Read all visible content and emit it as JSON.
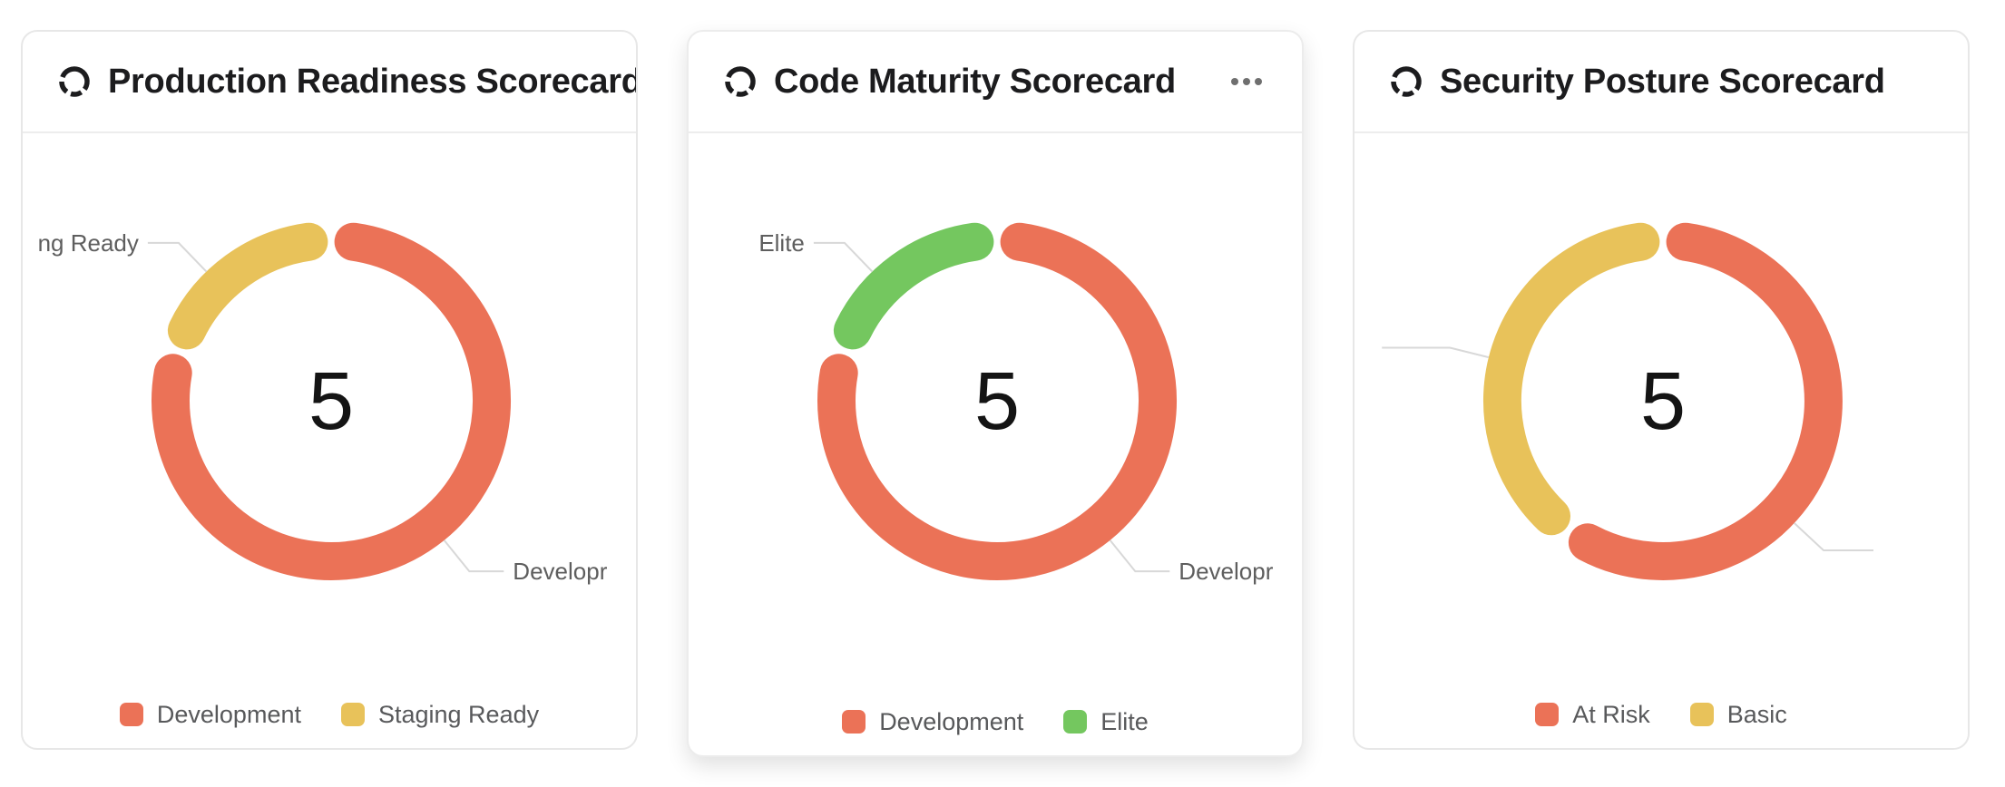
{
  "style": {
    "leader_line_color": "#d8d8d8",
    "accent_red": "#EB7257",
    "accent_yellow": "#E8C25A",
    "accent_green": "#74C75F"
  },
  "cards": [
    {
      "title": "Production Readiness Scorecard",
      "icon": "donut-chart-icon",
      "has_menu": false,
      "legend": [
        {
          "label": "Development",
          "color": "#EB7257"
        },
        {
          "label": "Staging Ready",
          "color": "#E8C25A"
        }
      ]
    },
    {
      "title": "Code Maturity Scorecard",
      "icon": "donut-chart-icon",
      "has_menu": true,
      "menu_icon": "ellipsis-icon",
      "legend": [
        {
          "label": "Development",
          "color": "#EB7257"
        },
        {
          "label": "Elite",
          "color": "#74C75F"
        }
      ]
    },
    {
      "title": "Security Posture Scorecard",
      "icon": "donut-chart-icon",
      "has_menu": false,
      "legend": [
        {
          "label": "At Risk",
          "color": "#EB7257"
        },
        {
          "label": "Basic",
          "color": "#E8C25A"
        }
      ]
    }
  ],
  "chart_data": [
    {
      "type": "pie",
      "subtype": "donut",
      "title": "Production Readiness Scorecard",
      "center_label": "5",
      "total": 5,
      "legend_position": "bottom",
      "slices": [
        {
          "label": "Development",
          "value": 4,
          "color": "#EB7257"
        },
        {
          "label": "Staging Ready",
          "value": 1,
          "color": "#E8C25A"
        }
      ],
      "callouts": [
        {
          "text": "ng Ready",
          "angle": 316,
          "hlen": 34
        },
        {
          "text": "Developr",
          "angle": 141,
          "hlen": 38
        }
      ]
    },
    {
      "type": "pie",
      "subtype": "donut",
      "title": "Code Maturity Scorecard",
      "center_label": "5",
      "total": 5,
      "legend_position": "bottom",
      "slices": [
        {
          "label": "Development",
          "value": 4,
          "color": "#EB7257"
        },
        {
          "label": "Elite",
          "value": 1,
          "color": "#74C75F"
        }
      ],
      "callouts": [
        {
          "text": "Elite",
          "angle": 316,
          "hlen": 34
        },
        {
          "text": "Developr",
          "angle": 141,
          "hlen": 38
        }
      ]
    },
    {
      "type": "pie",
      "subtype": "donut",
      "title": "Security Posture Scorecard",
      "center_label": "5",
      "total": 5,
      "legend_position": "bottom",
      "slices": [
        {
          "label": "At Risk",
          "value": 3,
          "color": "#EB7257"
        },
        {
          "label": "Basic",
          "value": 2,
          "color": "#E8C25A"
        }
      ],
      "callouts": [
        {
          "text": "",
          "angle": 284,
          "hlen": 75
        },
        {
          "text": "",
          "angle": 133,
          "hlen": 55
        }
      ]
    }
  ]
}
